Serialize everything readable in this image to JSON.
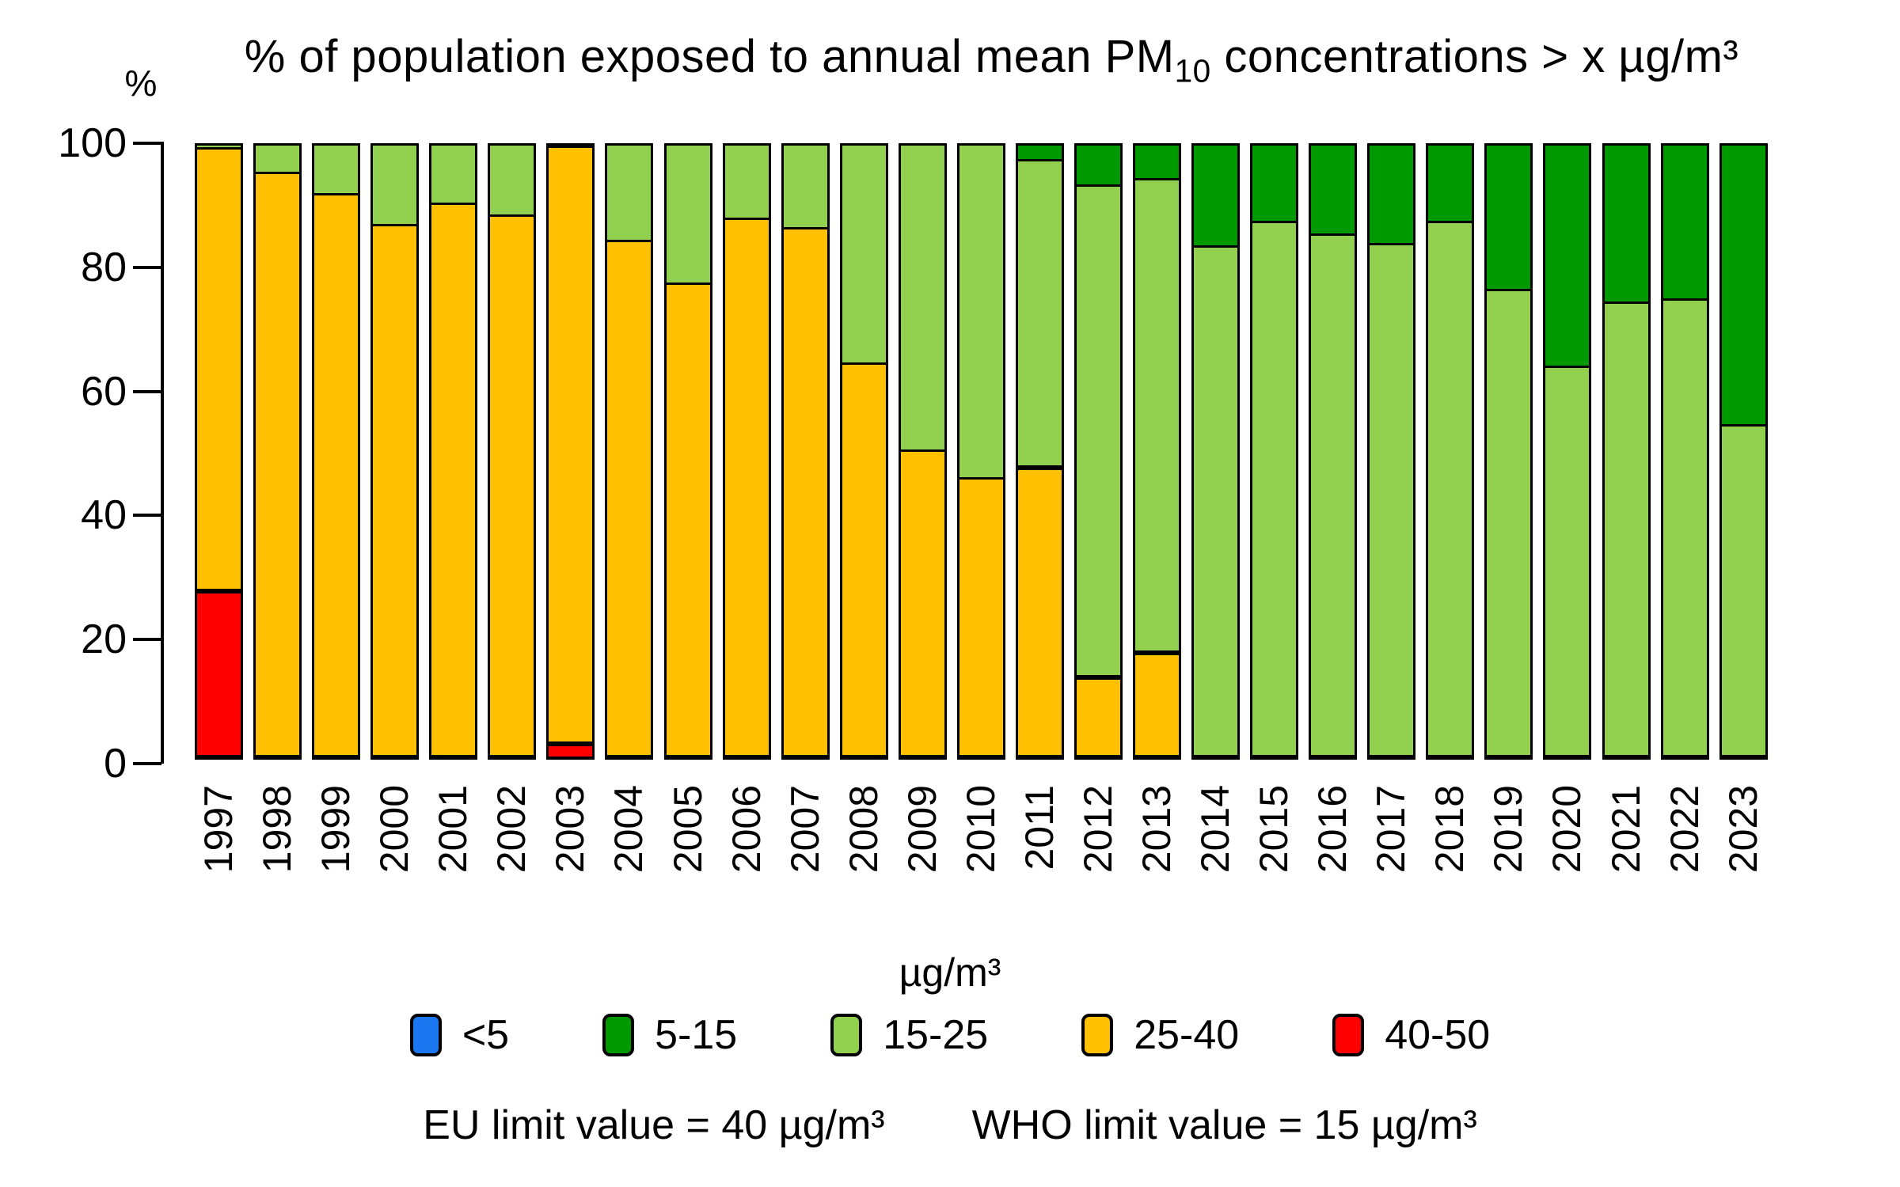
{
  "title": {
    "prefix": "% of population exposed to annual mean PM",
    "sub": "10",
    "suffix": " concentrations > x µg/m³"
  },
  "y_axis": {
    "unit_label": "%",
    "ticks": [
      "100",
      "80",
      "60",
      "40",
      "20",
      "0"
    ],
    "range": [
      0,
      100
    ]
  },
  "legend": {
    "title": "µg/m³",
    "items": [
      {
        "label": "<5",
        "color": "#1C78F0"
      },
      {
        "label": "5-15",
        "color": "#009900"
      },
      {
        "label": "15-25",
        "color": "#92D050"
      },
      {
        "label": "25-40",
        "color": "#FFC000"
      },
      {
        "label": "40-50",
        "color": "#FF0000"
      }
    ]
  },
  "footer": {
    "eu_limit": "EU limit value = 40 µg/m³",
    "who_limit": "WHO limit value = 15 µg/m³"
  },
  "chart_data": {
    "type": "bar",
    "stacked": true,
    "title": "% of population exposed to annual mean PM10 concentrations > x µg/m³",
    "xlabel": "",
    "ylabel": "%",
    "ylim": [
      0,
      100
    ],
    "grid": false,
    "legend_position": "bottom",
    "categories": [
      "1997",
      "1998",
      "1999",
      "2000",
      "2001",
      "2002",
      "2003",
      "2004",
      "2005",
      "2006",
      "2007",
      "2008",
      "2009",
      "2010",
      "2011",
      "2012",
      "2013",
      "2014",
      "2015",
      "2016",
      "2017",
      "2018",
      "2019",
      "2020",
      "2021",
      "2022",
      "2023"
    ],
    "stack_order_bottom_to_top": [
      "40-50",
      "25-40",
      "15-25",
      "5-15",
      "<5"
    ],
    "series": [
      {
        "name": "40-50",
        "color": "#FF0000",
        "values": [
          27,
          0,
          0,
          0,
          0,
          0,
          2.5,
          0,
          0,
          0,
          0,
          0,
          0,
          0,
          0,
          0,
          0,
          0,
          0,
          0,
          0,
          0,
          0,
          0,
          0,
          0,
          0
        ]
      },
      {
        "name": "25-40",
        "color": "#FFC000",
        "values": [
          72,
          95,
          91.5,
          86.5,
          90,
          88,
          97,
          84,
          77,
          87.5,
          86,
          64,
          50,
          45.5,
          47,
          13,
          17,
          0,
          0,
          0,
          0,
          0,
          0,
          0,
          0,
          0,
          0
        ]
      },
      {
        "name": "15-25",
        "color": "#92D050",
        "values": [
          1,
          5,
          8.5,
          13.5,
          10,
          12,
          0.5,
          16,
          23,
          12.5,
          14,
          36,
          50,
          54.5,
          50,
          80,
          77,
          83,
          87,
          85,
          83.5,
          87,
          76,
          63.5,
          74,
          74.5,
          54
        ]
      },
      {
        "name": "5-15",
        "color": "#009900",
        "values": [
          0,
          0,
          0,
          0,
          0,
          0,
          0,
          0,
          0,
          0,
          0,
          0,
          0,
          0,
          3,
          7,
          6,
          17,
          13,
          15,
          16.5,
          13,
          24,
          36.5,
          26,
          25.5,
          46
        ]
      },
      {
        "name": "<5",
        "color": "#1C78F0",
        "values": [
          0,
          0,
          0,
          0,
          0,
          0,
          0,
          0,
          0,
          0,
          0,
          0,
          0,
          0,
          0,
          0,
          0,
          0,
          0,
          0,
          0,
          0,
          0,
          0,
          0,
          0,
          0
        ]
      }
    ]
  }
}
